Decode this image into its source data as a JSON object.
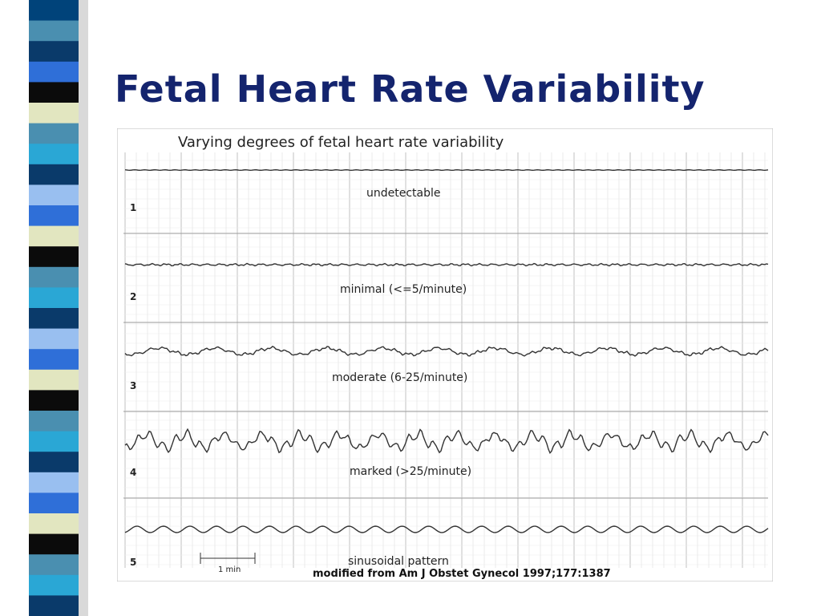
{
  "slide": {
    "title": "Fetal Heart Rate Variability",
    "title_color": "#14246e",
    "stripe_colors": [
      "#00437a",
      "#4a8fb0",
      "#0a3a6a",
      "#2f6fd8",
      "#0b0b0b",
      "#e2e6c0",
      "#4a8fb0",
      "#2aa7d5",
      "#0a3a6a",
      "#99bff0",
      "#2f6fd8",
      "#e2e6c0",
      "#0b0b0b",
      "#4a8fb0",
      "#2aa7d5",
      "#0a3a6a",
      "#99bff0",
      "#2f6fd8",
      "#e2e6c0",
      "#0b0b0b",
      "#4a8fb0",
      "#2aa7d5",
      "#0a3a6a",
      "#99bff0",
      "#2f6fd8",
      "#e2e6c0",
      "#0b0b0b",
      "#4a8fb0",
      "#2aa7d5",
      "#0a3a6a"
    ]
  },
  "figure": {
    "heading": "Varying degrees of fetal heart rate variability",
    "scale_label": "1 min",
    "source": "modified from Am J Obstet Gynecol 1997;177:1387",
    "strips": [
      {
        "number": "1",
        "label": "undetectable",
        "variability": "none"
      },
      {
        "number": "2",
        "label": "minimal (<=5/minute)",
        "variability": "minimal"
      },
      {
        "number": "3",
        "label": "moderate (6-25/minute)",
        "variability": "moderate"
      },
      {
        "number": "4",
        "label": "marked (>25/minute)",
        "variability": "marked"
      },
      {
        "number": "5",
        "label": "sinusoidal pattern",
        "variability": "sinusoidal"
      }
    ]
  }
}
